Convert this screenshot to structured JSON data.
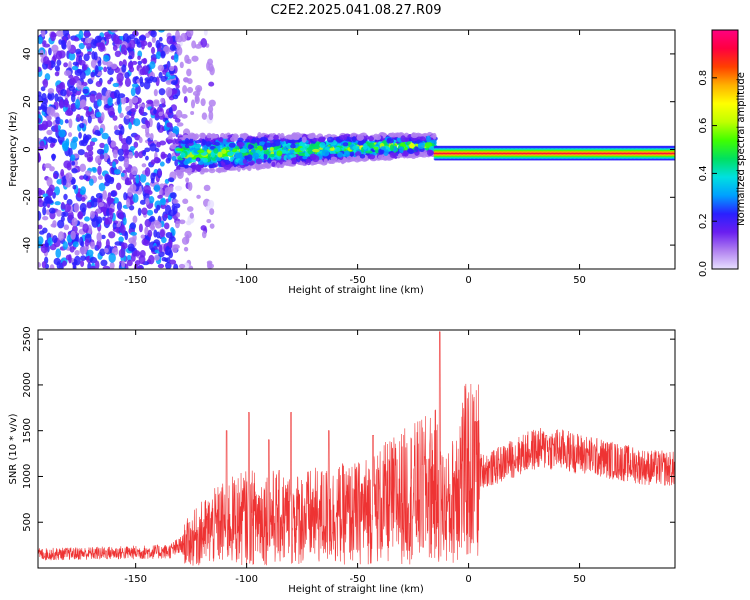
{
  "figure": {
    "title": "C2E2.2025.041.08.27.R09"
  },
  "chart_data": [
    {
      "type": "heatmap",
      "xlabel": "Height of straight line (km)",
      "ylabel": "Frequency (Hz)",
      "xlim": [
        -194,
        93
      ],
      "ylim": [
        -50,
        50
      ],
      "x_ticks": [
        -150,
        -100,
        -50,
        0,
        50
      ],
      "y_ticks": [
        -40,
        -20,
        0,
        20,
        40
      ],
      "colorbar": {
        "label": "Normalized spectral amplitude",
        "range": [
          0,
          1
        ],
        "ticks": [
          "0.0",
          "0.2",
          "0.4",
          "0.6",
          "0.8"
        ],
        "colors": [
          "#e8e0ff",
          "#b080f0",
          "#6a1ef0",
          "#2a20ff",
          "#00a0ff",
          "#00e0e0",
          "#00e060",
          "#40ff00",
          "#c0ff00",
          "#ffff00",
          "#ffb000",
          "#ff4000",
          "#ff0040",
          "#ff0080"
        ]
      },
      "regions": [
        {
          "name": "broadband noise",
          "x_range": [
            -194,
            -131
          ],
          "freq_range": [
            -50,
            50
          ],
          "amplitude": 0.25
        },
        {
          "name": "scattered noise",
          "x_range": [
            -131,
            -115
          ],
          "freq_range": [
            -50,
            50
          ],
          "amplitude": 0.1
        },
        {
          "name": "echo band",
          "x_range": [
            -131,
            -15
          ],
          "center_freq": [
            -2,
            2
          ],
          "half_width": [
            8,
            4
          ],
          "amplitude": 0.45
        },
        {
          "name": "narrow echo",
          "x_range": [
            -15,
            93
          ],
          "center_freq": -1.5,
          "half_width": 2.5,
          "amplitude": 0.9
        }
      ]
    },
    {
      "type": "line",
      "xlabel": "Height of straight line (km)",
      "ylabel": "SNR (10 * v/v)",
      "xlim": [
        -194,
        93
      ],
      "ylim": [
        0,
        2600
      ],
      "x_ticks": [
        -150,
        -100,
        -50,
        0,
        50
      ],
      "y_ticks": [
        500,
        1000,
        1500,
        2000,
        2500
      ],
      "color": "#ee3333",
      "x": [
        -194,
        -170,
        -150,
        -135,
        -128,
        -120,
        -110,
        -100,
        -90,
        -80,
        -70,
        -60,
        -50,
        -40,
        -30,
        -20,
        -15,
        -12,
        -8,
        -5,
        0,
        10,
        20,
        30,
        40,
        50,
        60,
        70,
        80,
        93
      ],
      "y": [
        150,
        160,
        170,
        180,
        260,
        380,
        500,
        550,
        560,
        540,
        560,
        580,
        600,
        680,
        780,
        850,
        900,
        700,
        650,
        1000,
        1050,
        1080,
        1200,
        1300,
        1300,
        1250,
        1200,
        1150,
        1100,
        1080
      ],
      "peaks": [
        {
          "x": -109,
          "y": 1500
        },
        {
          "x": -99,
          "y": 1700
        },
        {
          "x": -90,
          "y": 1400
        },
        {
          "x": -80,
          "y": 1700
        },
        {
          "x": -63,
          "y": 1500
        },
        {
          "x": -43,
          "y": 1450
        },
        {
          "x": -13,
          "y": 2580
        },
        {
          "x": 3,
          "y": 1600
        },
        {
          "x": 35,
          "y": 1450
        }
      ]
    }
  ]
}
